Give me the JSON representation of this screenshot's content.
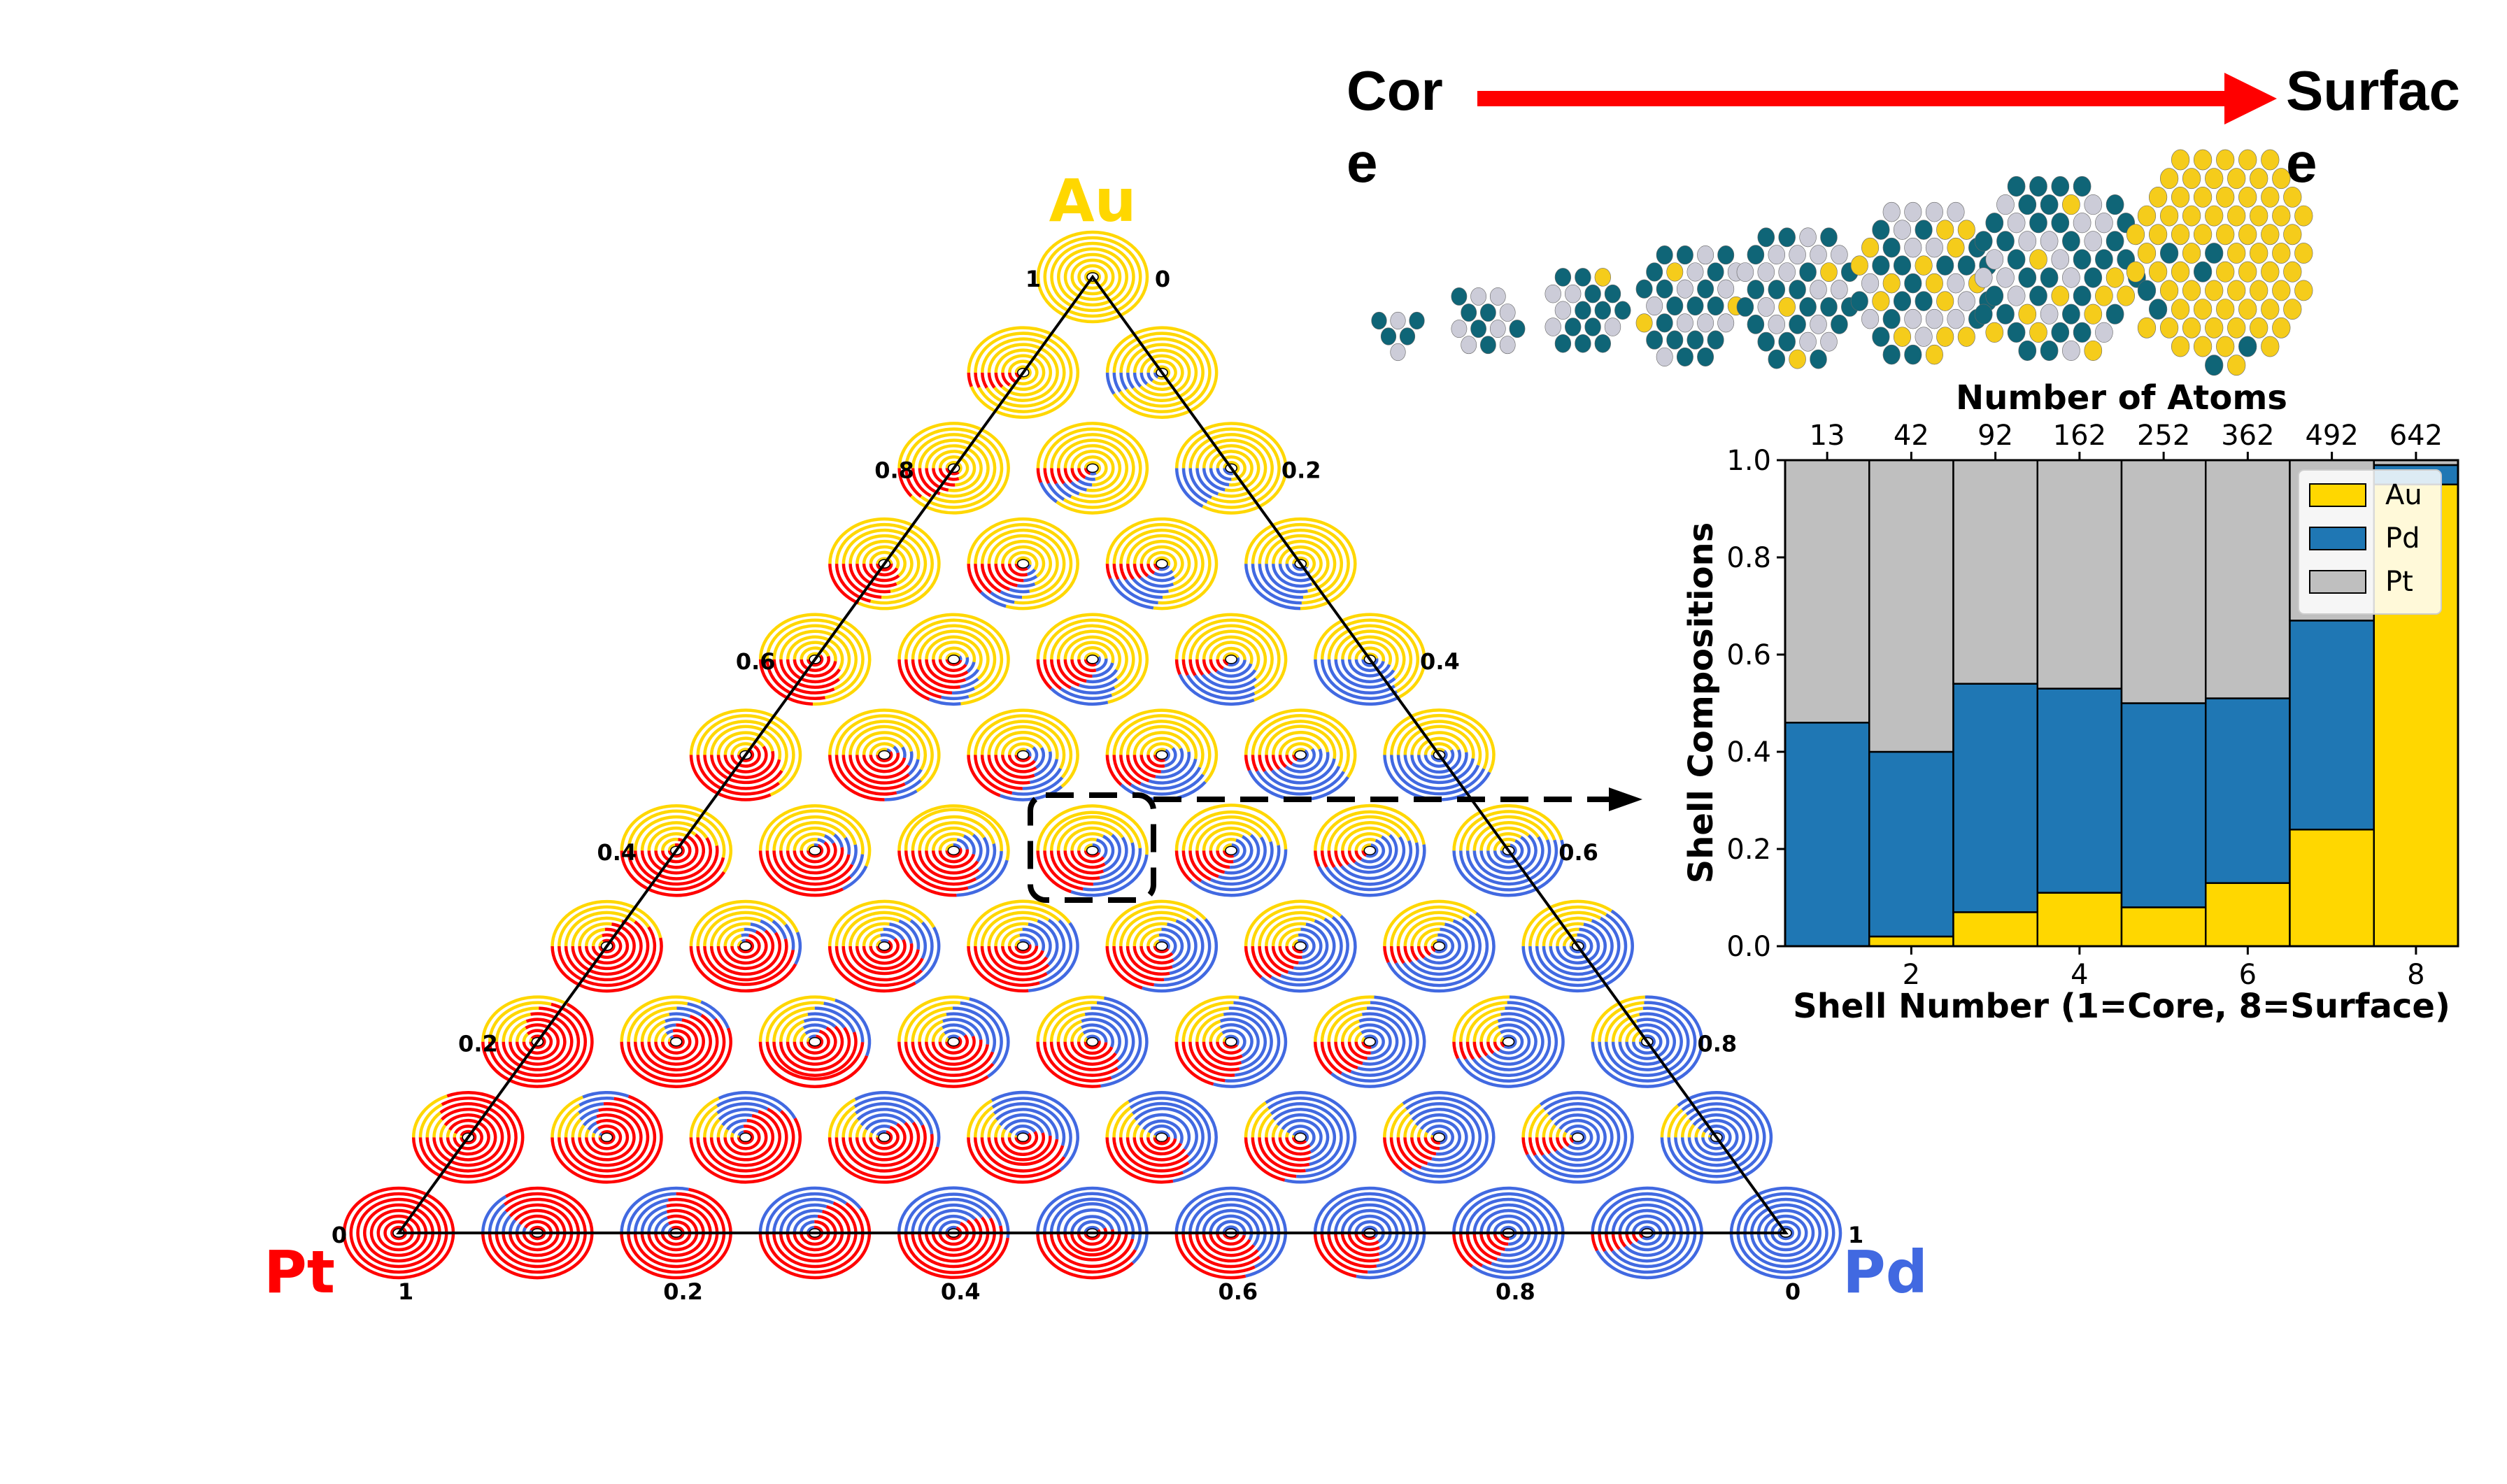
{
  "header": {
    "core_label_line1": "Cor",
    "core_label_line2": "e",
    "surface_label_line1": "Surfac",
    "surface_label_line2": "e",
    "arrow_color": "#ff0000"
  },
  "colors": {
    "Au": "#ffd700",
    "Pd": "#4169e1",
    "Pt": "#ff0000",
    "bar_Au": "#ffd700",
    "bar_Pd": "#1f77b4",
    "bar_Pt": "#bfbfbf",
    "atom_Au": "#f5cc1b",
    "atom_Pd": "#0f6577",
    "atom_Pt": "#ccccd8"
  },
  "ternary": {
    "vertex_labels": {
      "top": "Au",
      "left": "Pt",
      "right": "Pd"
    },
    "left_edge_ticks": [
      "0",
      "0.2",
      "0.4",
      "0.6",
      "0.8",
      "1"
    ],
    "right_edge_ticks": [
      "0",
      "0.2",
      "0.4",
      "0.6",
      "0.8",
      "1"
    ],
    "bottom_edge_ticks": [
      "1",
      "0.2",
      "0.4",
      "0.6",
      "0.8",
      "0"
    ],
    "grid_divisions": 10,
    "rings_per_marker": 8,
    "highlighted_point": {
      "Pt": 0.5,
      "Pd": 0.1,
      "Au": 0.4
    }
  },
  "clusters": {
    "atom_counts": [
      13,
      42,
      92,
      162,
      252,
      362,
      492,
      642
    ]
  },
  "chart_data": {
    "type": "bar",
    "stacked": true,
    "title": "",
    "xlabel": "Shell Number (1=Core, 8=Surface)",
    "ylabel": "Shell Compositions",
    "x2label": "Number of Atoms",
    "categories": [
      1,
      2,
      3,
      4,
      5,
      6,
      7,
      8
    ],
    "x2_ticks": [
      "13",
      "42",
      "92",
      "162",
      "252",
      "362",
      "492",
      "642"
    ],
    "x_ticks": [
      "2",
      "4",
      "6",
      "8"
    ],
    "y_ticks": [
      "0.0",
      "0.2",
      "0.4",
      "0.6",
      "0.8",
      "1.0"
    ],
    "ylim": [
      0,
      1
    ],
    "legend_position": "upper right",
    "series": [
      {
        "name": "Au",
        "values": [
          0.0,
          0.02,
          0.07,
          0.11,
          0.08,
          0.13,
          0.24,
          0.95
        ]
      },
      {
        "name": "Pd",
        "values": [
          0.46,
          0.38,
          0.47,
          0.42,
          0.42,
          0.38,
          0.43,
          0.04
        ]
      },
      {
        "name": "Pt",
        "values": [
          0.54,
          0.6,
          0.46,
          0.47,
          0.5,
          0.49,
          0.33,
          0.01
        ]
      }
    ]
  }
}
